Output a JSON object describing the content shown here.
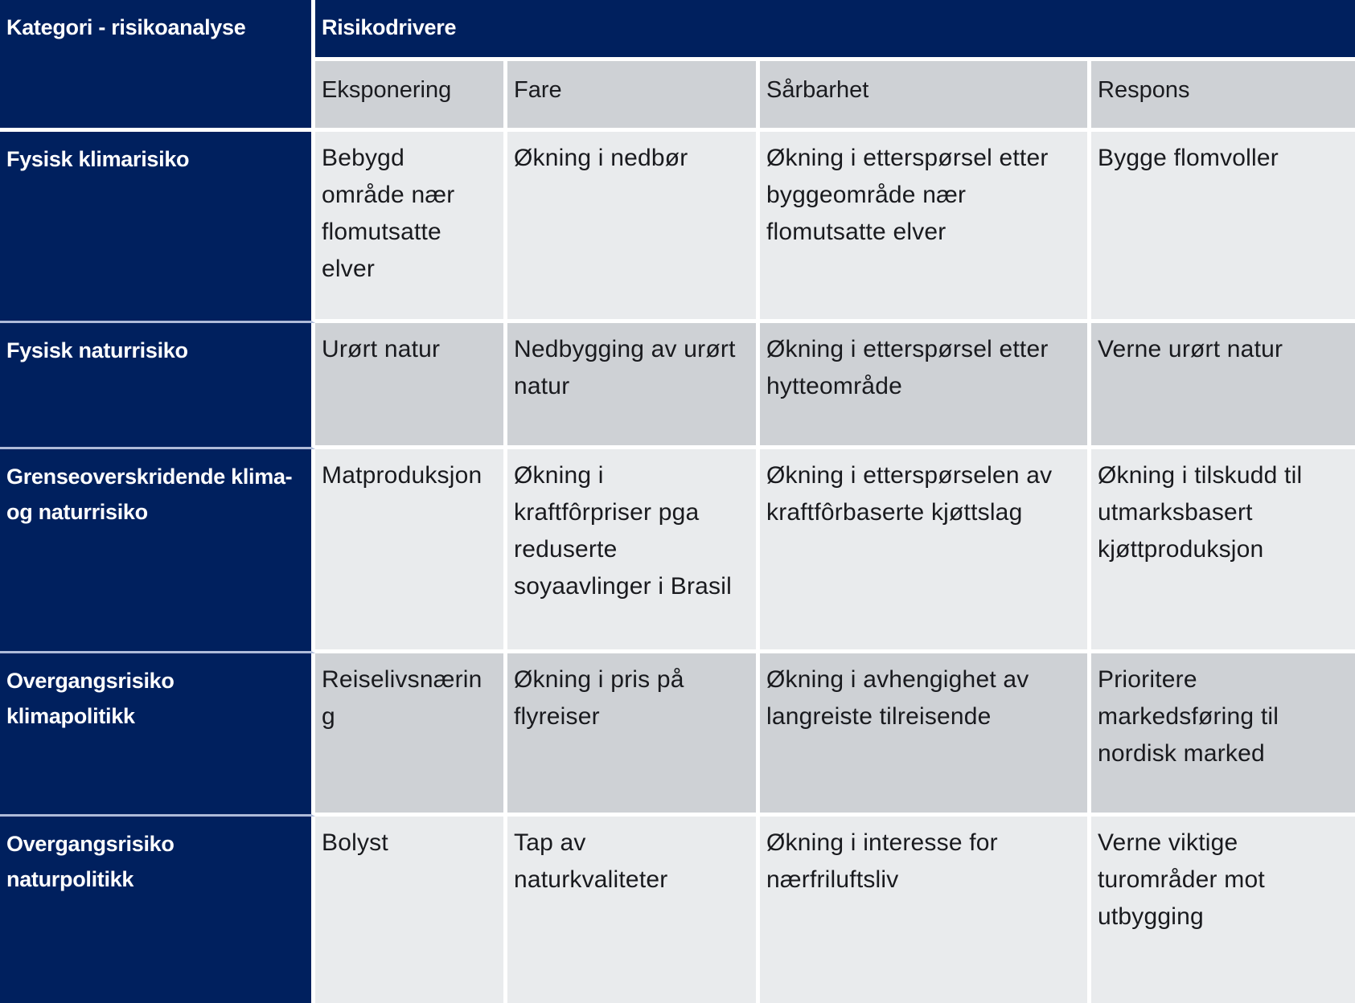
{
  "colors": {
    "navy": "#00205e",
    "row_light_gray": "#e9ebed",
    "row_dark_gray": "#ced1d5",
    "header_text": "#ffffff",
    "body_text": "#191a1e"
  },
  "table": {
    "corner_header": "Kategori - risikoanalyse",
    "group_header": "Risikodrivere",
    "column_headers": [
      "Eksponering",
      "Fare",
      "Sårbarhet",
      "Respons"
    ],
    "rows": [
      {
        "category": "Fysisk klimarisiko",
        "cells": [
          "Bebygd område nær flomutsatte elver",
          "Økning i nedbør",
          "Økning i etterspørsel etter byggeområde nær flomutsatte elver",
          "Bygge flomvoller"
        ]
      },
      {
        "category": "Fysisk naturrisiko",
        "cells": [
          "Urørt natur",
          "Nedbygging av urørt natur",
          "Økning i etterspørsel etter hytteområde",
          "Verne urørt natur"
        ]
      },
      {
        "category": "Grenseoverskridende klima- og naturrisiko",
        "cells": [
          "Matproduksjon",
          "Økning i kraftfôrpriser pga reduserte soyaavlinger i Brasil",
          "Økning i etterspørselen av kraftfôrbaserte kjøttslag",
          "Økning i tilskudd til utmarksbasert kjøttproduksjon"
        ]
      },
      {
        "category": "Overgangsrisiko klimapolitikk",
        "cells": [
          "Reiselivsnæring",
          "Økning i pris på flyreiser",
          "Økning i avhengighet av langreiste tilreisende",
          "Prioritere markedsføring til nordisk marked"
        ]
      },
      {
        "category": "Overgangsrisiko naturpolitikk",
        "cells": [
          "Bolyst",
          "Tap av naturkvaliteter",
          "Økning i interesse for nærfriluftsliv",
          "Verne viktige turområder mot utbygging"
        ]
      }
    ]
  }
}
